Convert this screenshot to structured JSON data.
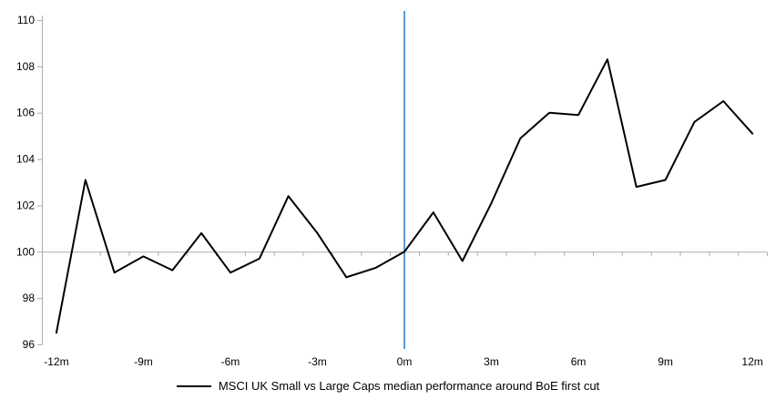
{
  "chart_data": {
    "type": "line",
    "title": "",
    "xlabel": "",
    "ylabel": "",
    "x": [
      -12,
      -11,
      -10,
      -9,
      -8,
      -7,
      -6,
      -5,
      -4,
      -3,
      -2,
      -1,
      0,
      1,
      2,
      3,
      4,
      5,
      6,
      7,
      8,
      9,
      10,
      11,
      12
    ],
    "series": [
      {
        "name": "MSCI UK Small vs Large Caps median performance around BoE first cut",
        "color": "#000000",
        "values": [
          96.5,
          103.1,
          99.1,
          99.8,
          99.2,
          100.8,
          99.1,
          99.7,
          102.4,
          100.8,
          98.9,
          99.3,
          100.0,
          101.7,
          99.6,
          102.1,
          104.9,
          106.0,
          105.9,
          108.3,
          102.8,
          103.1,
          105.6,
          106.5,
          105.1
        ]
      }
    ],
    "ylim": [
      96,
      110
    ],
    "xlim": [
      -12.5,
      12.5
    ],
    "yticks": [
      96,
      98,
      100,
      102,
      104,
      106,
      108,
      110
    ],
    "xticks": [
      {
        "label": "-12m",
        "value": -12
      },
      {
        "label": "-9m",
        "value": -9
      },
      {
        "label": "-6m",
        "value": -6
      },
      {
        "label": "-3m",
        "value": -3
      },
      {
        "label": "0m",
        "value": 0
      },
      {
        "label": "3m",
        "value": 3
      },
      {
        "label": "6m",
        "value": 6
      },
      {
        "label": "9m",
        "value": 9
      },
      {
        "label": "12m",
        "value": 12
      }
    ],
    "baseline_value": 100,
    "event_line_x": 0,
    "grid": "off",
    "legend_position": "bottom"
  },
  "colors": {
    "background": "#ffffff",
    "series_line": "#000000",
    "axis_gray": "#ababab",
    "event_line_blue": "#5b9bd5",
    "label_text": "#000000"
  },
  "legend": {
    "label": "MSCI UK Small vs Large Caps median performance around BoE first cut"
  }
}
